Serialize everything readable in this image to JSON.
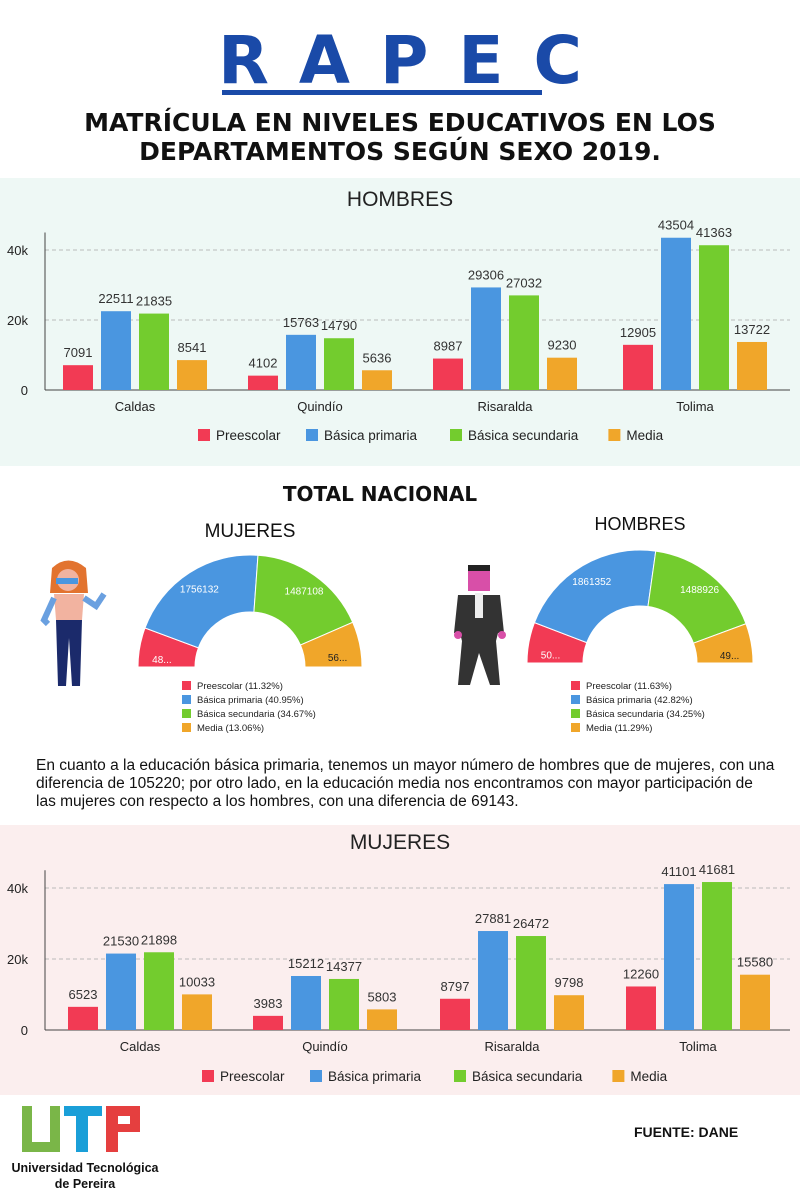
{
  "header": {
    "brand": "RAPEC",
    "subtitle": "MATRÍCULA EN NIVELES EDUCATIVOS EN LOS DEPARTAMENTOS SEGÚN SEXO 2019."
  },
  "colors": {
    "Preescolar": "#f23a54",
    "Básica primaria": "#4a96e0",
    "Básica secundaria": "#73cc2e",
    "Media": "#f0a62a",
    "brand": "#1a4aa8"
  },
  "chart_data": [
    {
      "type": "bar",
      "title": "HOMBRES",
      "categories": [
        "Caldas",
        "Quindío",
        "Risaralda",
        "Tolima"
      ],
      "ylim": [
        0,
        45000
      ],
      "yticks": [
        "0",
        "20k",
        "40k"
      ],
      "grid": true,
      "legend": "bottom",
      "series": [
        {
          "name": "Preescolar",
          "values": [
            7091,
            4102,
            8987,
            12905
          ]
        },
        {
          "name": "Básica primaria",
          "values": [
            22511,
            15763,
            29306,
            43504
          ]
        },
        {
          "name": "Básica secundaria",
          "values": [
            21835,
            14790,
            27032,
            41363
          ]
        },
        {
          "name": "Media",
          "values": [
            8541,
            5636,
            9230,
            13722
          ]
        }
      ]
    },
    {
      "type": "pie",
      "variant": "half-donut",
      "title": "MUJERES",
      "group": "TOTAL NACIONAL",
      "slices": [
        {
          "name": "Preescolar",
          "percent": 11.32,
          "label": "48..."
        },
        {
          "name": "Básica primaria",
          "percent": 40.95,
          "label": "1756132"
        },
        {
          "name": "Básica secundaria",
          "percent": 34.67,
          "label": "1487108"
        },
        {
          "name": "Media",
          "percent": 13.06,
          "label": "56..."
        }
      ],
      "legend_labels": [
        "Preescolar (11.32%)",
        "Básica primaria (40.95%)",
        "Básica secundaria (34.67%)",
        "Media (13.06%)"
      ]
    },
    {
      "type": "pie",
      "variant": "half-donut",
      "title": "HOMBRES",
      "group": "TOTAL NACIONAL",
      "slices": [
        {
          "name": "Preescolar",
          "percent": 11.63,
          "label": "50..."
        },
        {
          "name": "Básica primaria",
          "percent": 42.82,
          "label": "1861352"
        },
        {
          "name": "Básica secundaria",
          "percent": 34.25,
          "label": "1488926"
        },
        {
          "name": "Media",
          "percent": 11.29,
          "label": "49..."
        }
      ],
      "legend_labels": [
        "Preescolar (11.63%)",
        "Básica primaria (42.82%)",
        "Básica secundaria (34.25%)",
        "Media (11.29%)"
      ]
    },
    {
      "type": "bar",
      "title": "MUJERES",
      "categories": [
        "Caldas",
        "Quindío",
        "Risaralda",
        "Tolima"
      ],
      "ylim": [
        0,
        45000
      ],
      "yticks": [
        "0",
        "20k",
        "40k"
      ],
      "grid": true,
      "legend": "bottom",
      "series": [
        {
          "name": "Preescolar",
          "values": [
            6523,
            3983,
            8797,
            12260
          ]
        },
        {
          "name": "Básica primaria",
          "values": [
            21530,
            15212,
            27881,
            41101
          ]
        },
        {
          "name": "Básica secundaria",
          "values": [
            21898,
            14377,
            26472,
            41681
          ]
        },
        {
          "name": "Media",
          "values": [
            10033,
            5803,
            9798,
            15580
          ]
        }
      ]
    }
  ],
  "total_nacional": "TOTAL NACIONAL",
  "paragraph": "En cuanto a la educación básica primaria, tenemos un mayor número de hombres que de mujeres, con una diferencia de 105220; por otro lado, en la educación media nos encontramos con mayor participación de las mujeres con respecto a los hombres, con una diferencia de 69143.",
  "footer": {
    "logo_text": "Universidad Tecnológica de Pereira",
    "source": "FUENTE: DANE"
  }
}
